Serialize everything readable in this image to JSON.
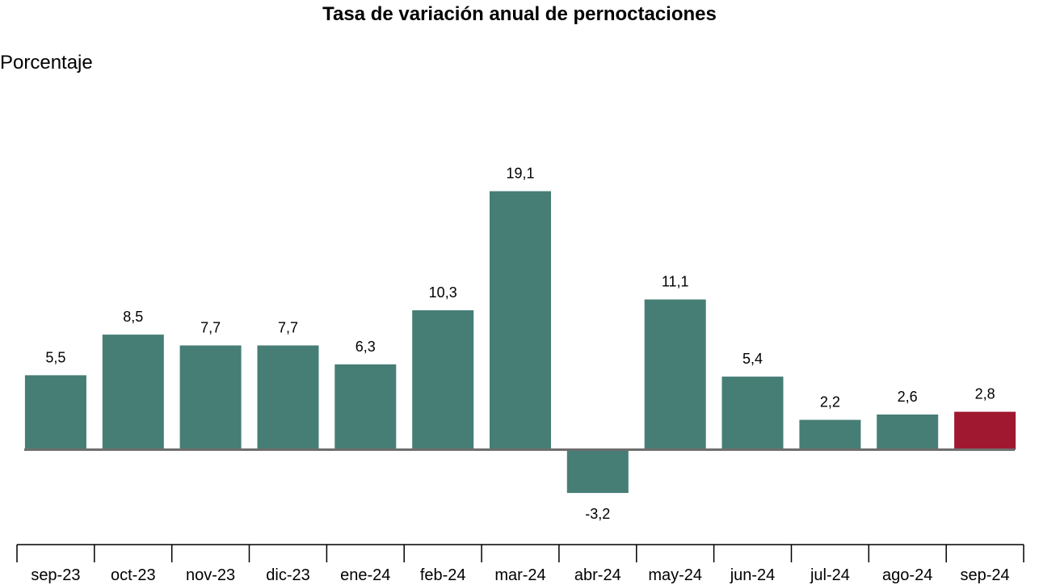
{
  "chart_data": {
    "type": "bar",
    "title": "Tasa de variación anual de pernoctaciones",
    "ylabel": "Porcentaje",
    "xlabel": "",
    "categories": [
      "sep-23",
      "oct-23",
      "nov-23",
      "dic-23",
      "ene-24",
      "feb-24",
      "mar-24",
      "abr-24",
      "may-24",
      "jun-24",
      "jul-24",
      "ago-24",
      "sep-24"
    ],
    "values": [
      5.5,
      8.5,
      7.7,
      7.7,
      6.3,
      10.3,
      19.1,
      -3.2,
      11.1,
      5.4,
      2.2,
      2.6,
      2.8
    ],
    "value_labels": [
      "5,5",
      "8,5",
      "7,7",
      "7,7",
      "6,3",
      "10,3",
      "19,1",
      "-3,2",
      "11,1",
      "5,4",
      "2,2",
      "2,6",
      "2,8"
    ],
    "ylim": [
      -3.2,
      19.1
    ],
    "grid": false,
    "legend": "none",
    "colors": {
      "bar": "#467e76",
      "highlight": "#a01830",
      "zero_line": "#6e6e6e",
      "axis": "#000000",
      "text": "#000000"
    },
    "highlight_index": 12
  }
}
